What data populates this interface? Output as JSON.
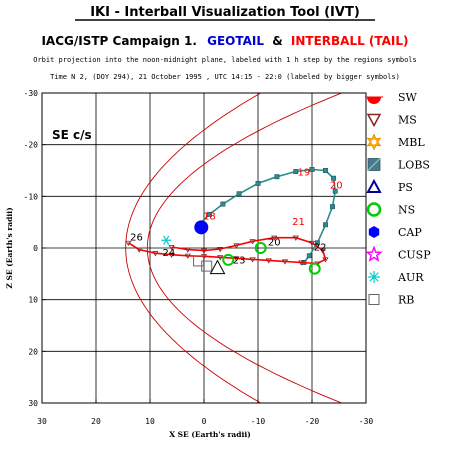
{
  "header": {
    "app_title": "IKI - Interball Visualization Tool (IVT)",
    "campaign_prefix": "IACG/ISTP Campaign 1.",
    "geotail": "GEOTAIL",
    "amp": "&",
    "interball": "INTERBALL (TAIL)",
    "subtitle": "Orbit projection into the noon-midnight plane, labeled with 1 h step by the regions symbols",
    "time_line": "Time N 2, (DOY 294), 21 October   1995 ,  UTC 14:15 - 22:0 (labeled by bigger symbols)"
  },
  "colors": {
    "text": "#000000",
    "geotail": "#0000cc",
    "interball": "#ff0000",
    "boundary": "#cc0000",
    "grid": "#000000",
    "geotail_orbit": "#2e8b8b",
    "interball_orbit": "#ff0000"
  },
  "chart_data": {
    "type": "scatter",
    "frame_label": "SE c/s",
    "xlabel": "X SE (Earth's radii)",
    "ylabel": "Z SE (Earth's radii)",
    "xlim": [
      30,
      -30
    ],
    "ylim": [
      -30,
      30
    ],
    "x_ticks": [
      30,
      20,
      10,
      0,
      -10,
      -20,
      -30
    ],
    "y_ticks": [
      -30,
      -20,
      -10,
      0,
      10,
      20,
      30
    ],
    "grid": true,
    "grid_major": [
      20,
      10,
      0,
      -10,
      -20
    ],
    "legend_position": "right",
    "legend": [
      {
        "label": "SW",
        "icon": "sw-half-sun-icon",
        "color": "#ff0000"
      },
      {
        "label": "MS",
        "icon": "ms-down-triangle-icon",
        "color": "#882222"
      },
      {
        "label": "MBL",
        "icon": "mbl-star-icon",
        "color": "#ffaa00"
      },
      {
        "label": "LOBS",
        "icon": "lobs-square-icon",
        "color": "#4a7a8c"
      },
      {
        "label": "PS",
        "icon": "ps-triangle-icon",
        "color": "#000099"
      },
      {
        "label": "NS",
        "icon": "ns-circle-icon",
        "color": "#00cc00"
      },
      {
        "label": "CAP",
        "icon": "cap-hexagon-icon",
        "color": "#0000ff"
      },
      {
        "label": "CUSP",
        "icon": "cusp-star-icon",
        "color": "#ff00ff"
      },
      {
        "label": "AUR",
        "icon": "aur-asterisk-icon",
        "color": "#00cccc"
      },
      {
        "label": "RB",
        "icon": "rb-square-icon",
        "color": "#666666"
      }
    ],
    "boundaries": [
      {
        "name": "bow shock",
        "nose_x": 14.5,
        "b": 36
      },
      {
        "name": "magnetopause",
        "nose_x": 10.5,
        "b": 25
      }
    ],
    "series": [
      {
        "points": [
          [
            1.0,
            -4.5
          ],
          [
            -1.0,
            -6.5
          ],
          [
            -3.5,
            -8.5
          ],
          [
            -6.5,
            -10.5
          ],
          [
            -10.0,
            -12.5
          ],
          [
            -13.5,
            -13.8
          ],
          [
            -17.0,
            -14.8
          ],
          [
            -20.0,
            -15.2
          ],
          [
            -22.5,
            -15.0
          ],
          [
            -24.0,
            -13.5
          ],
          [
            -24.3,
            -11.0
          ],
          [
            -23.8,
            -8.0
          ],
          [
            -22.5,
            -4.5
          ],
          [
            -21.0,
            -1.0
          ],
          [
            -19.5,
            1.5
          ],
          [
            -18.5,
            2.8
          ]
        ]
      },
      {
        "points": [
          [
            14.0,
            -1.0
          ],
          [
            12.0,
            0.3
          ],
          [
            9.0,
            1.0
          ],
          [
            6.0,
            1.3
          ],
          [
            3.0,
            1.5
          ],
          [
            0.0,
            1.6
          ],
          [
            -3.0,
            1.8
          ],
          [
            -6.0,
            2.0
          ],
          [
            -9.0,
            2.2
          ],
          [
            -12.0,
            2.4
          ],
          [
            -15.0,
            2.6
          ],
          [
            -18.0,
            2.8
          ],
          [
            -21.0,
            3.0
          ],
          [
            -22.5,
            2.2
          ],
          [
            -22.0,
            0.5
          ],
          [
            -20.0,
            -1.0
          ],
          [
            -17.0,
            -2.0
          ],
          [
            -13.0,
            -2.0
          ],
          [
            -9.0,
            -1.3
          ],
          [
            -6.0,
            -0.5
          ],
          [
            -3.0,
            0.2
          ],
          [
            0.0,
            0.5
          ],
          [
            3.0,
            0.3
          ],
          [
            6.0,
            -0.2
          ]
        ]
      }
    ],
    "hour_labels": [
      {
        "text": "19",
        "x": -18.5,
        "y": -14.0,
        "color": "#ff0000"
      },
      {
        "text": "20",
        "x": -24.5,
        "y": -11.5,
        "color": "#ff0000"
      },
      {
        "text": "21",
        "x": -17.5,
        "y": -4.5,
        "color": "#ff0000"
      },
      {
        "text": "18",
        "x": -1.0,
        "y": -5.5,
        "color": "#ff0000"
      },
      {
        "text": "22",
        "x": -21.5,
        "y": 0.5,
        "color": "#000000"
      },
      {
        "text": "20",
        "x": -13.0,
        "y": -0.5,
        "color": "#000000"
      },
      {
        "text": "26",
        "x": 12.5,
        "y": -1.5,
        "color": "#000000"
      },
      {
        "text": "24",
        "x": 6.5,
        "y": 1.5,
        "color": "#000000"
      },
      {
        "text": "23",
        "x": -6.5,
        "y": 3.0,
        "color": "#000000"
      }
    ],
    "big_markers": [
      {
        "shape": "cap-circle",
        "x": 0.5,
        "y": -4.0,
        "color": "#0000ff"
      },
      {
        "shape": "rb-square",
        "x": 1.0,
        "y": 2.5,
        "color": "#666666"
      },
      {
        "shape": "rb-square",
        "x": -0.5,
        "y": 3.5,
        "color": "#666666"
      },
      {
        "shape": "ps-triangle",
        "x": -2.5,
        "y": 4.0,
        "color": "#000000"
      },
      {
        "shape": "ns-circle",
        "x": -20.5,
        "y": 4.0,
        "color": "#00cc00"
      },
      {
        "shape": "ns-circle",
        "x": -10.5,
        "y": 0.0,
        "color": "#00cc00"
      },
      {
        "shape": "ns-circle",
        "x": -4.5,
        "y": 2.3,
        "color": "#00cc00"
      },
      {
        "shape": "aur-star",
        "x": 7.0,
        "y": -1.5,
        "color": "#00cccc"
      }
    ]
  }
}
